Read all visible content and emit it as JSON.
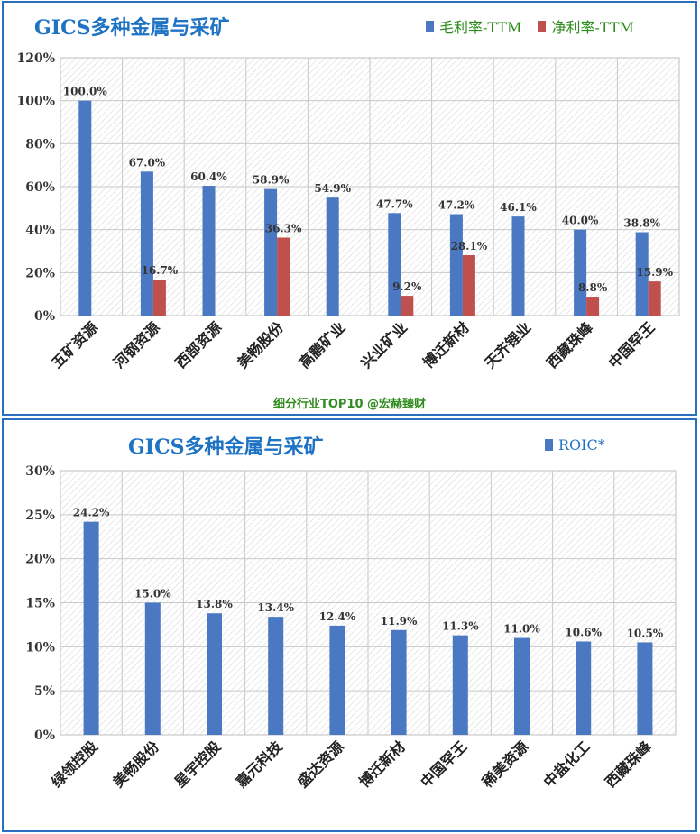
{
  "colors": {
    "blue": "#4a78c2",
    "red": "#c0504d",
    "grid": "#c9c9c9",
    "hatch": "#d9d9d9",
    "title": "#1f73c4",
    "legend_green": "#2e8b1e",
    "legend_blue": "#1f73c4",
    "axis_text": "#333333"
  },
  "panel1": {
    "title": "GICS多种金属与采矿",
    "legend": [
      {
        "label": "毛利率-TTM",
        "color": "#4a78c2"
      },
      {
        "label": "净利率-TTM",
        "color": "#c0504d"
      }
    ],
    "footer": "细分行业TOP10 @宏赫臻财"
  },
  "panel2": {
    "title": "GICS多种金属与采矿",
    "legend": [
      {
        "label": "ROIC*",
        "color": "#4a78c2"
      }
    ]
  },
  "chart_data": [
    {
      "type": "bar",
      "title": "GICS多种金属与采矿",
      "categories": [
        "五矿资源",
        "河钢资源",
        "西部资源",
        "美畅股份",
        "高鹏矿业",
        "兴业矿业",
        "博迁新材",
        "天齐锂业",
        "西藏珠峰",
        "中国罕王"
      ],
      "series": [
        {
          "name": "毛利率-TTM",
          "values": [
            100.0,
            67.0,
            60.4,
            58.9,
            54.9,
            47.7,
            47.2,
            46.1,
            40.0,
            38.8
          ],
          "labels": [
            "100.0%",
            "67.0%",
            "60.4%",
            "58.9%",
            "54.9%",
            "47.7%",
            "47.2%",
            "46.1%",
            "40.0%",
            "38.8%"
          ]
        },
        {
          "name": "净利率-TTM",
          "values": [
            null,
            16.7,
            null,
            36.3,
            null,
            9.2,
            28.1,
            null,
            8.8,
            15.9
          ],
          "labels": [
            "",
            "16.7%",
            "",
            "36.3%",
            "",
            "9.2%",
            "28.1%",
            "",
            "8.8%",
            "15.9%"
          ]
        }
      ],
      "yticks": [
        "0%",
        "20%",
        "40%",
        "60%",
        "80%",
        "100%",
        "120%"
      ],
      "ylim": [
        0,
        120
      ],
      "grid": true,
      "legend_position": "top-right"
    },
    {
      "type": "bar",
      "title": "GICS多种金属与采矿",
      "categories": [
        "绿领控股",
        "美畅股份",
        "星宇控股",
        "嘉元科技",
        "盛达资源",
        "博迁新材",
        "中国罕王",
        "稀美资源",
        "中盐化工",
        "西藏珠峰"
      ],
      "series": [
        {
          "name": "ROIC*",
          "values": [
            24.2,
            15.0,
            13.8,
            13.4,
            12.4,
            11.9,
            11.3,
            11.0,
            10.6,
            10.5
          ],
          "labels": [
            "24.2%",
            "15.0%",
            "13.8%",
            "13.4%",
            "12.4%",
            "11.9%",
            "11.3%",
            "11.0%",
            "10.6%",
            "10.5%"
          ]
        }
      ],
      "yticks": [
        "0%",
        "5%",
        "10%",
        "15%",
        "20%",
        "25%",
        "30%"
      ],
      "ylim": [
        0,
        30
      ],
      "grid": true,
      "legend_position": "top-right"
    }
  ]
}
